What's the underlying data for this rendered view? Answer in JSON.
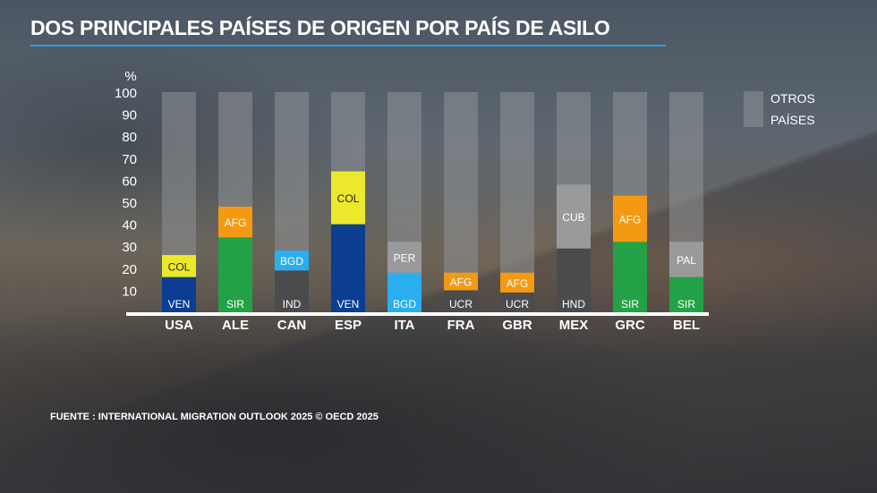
{
  "header": {
    "title": "DOS PRINCIPALES PAÍSES DE ORIGEN POR PAÍS DE ASILO"
  },
  "footer": {
    "source": "FUENTE : INTERNATIONAL MIGRATION OUTLOOK 2025 © OECD 2025"
  },
  "chart_data": {
    "type": "bar",
    "stacked": true,
    "ylabel": "%",
    "ylim": [
      0,
      100
    ],
    "yticks": [
      10,
      20,
      30,
      40,
      50,
      60,
      70,
      80,
      90,
      100
    ],
    "categories": [
      "USA",
      "ALE",
      "CAN",
      "ESP",
      "ITA",
      "FRA",
      "GBR",
      "MEX",
      "GRC",
      "BEL"
    ],
    "legend": {
      "lines": [
        "OTROS",
        "PAÍSES"
      ],
      "placement": "right",
      "color": "#8e9196"
    },
    "background_total": 100,
    "stacks": [
      {
        "category": "USA",
        "segments": [
          {
            "label": "VEN",
            "value": 16,
            "color": "#0b3d91"
          },
          {
            "label": "COL",
            "value": 10,
            "color": "#ece82c"
          }
        ]
      },
      {
        "category": "ALE",
        "segments": [
          {
            "label": "SIR",
            "value": 34,
            "color": "#23a146"
          },
          {
            "label": "AFG",
            "value": 14,
            "color": "#f39a12"
          }
        ]
      },
      {
        "category": "CAN",
        "segments": [
          {
            "label": "IND",
            "value": 19,
            "color": "#4b4b4e"
          },
          {
            "label": "BGD",
            "value": 9,
            "color": "#2aaef0"
          }
        ]
      },
      {
        "category": "ESP",
        "segments": [
          {
            "label": "VEN",
            "value": 40,
            "color": "#0b3d91"
          },
          {
            "label": "COL",
            "value": 24,
            "color": "#ece82c"
          }
        ]
      },
      {
        "category": "ITA",
        "segments": [
          {
            "label": "BGD",
            "value": 18,
            "color": "#2aaef0"
          },
          {
            "label": "PER",
            "value": 14,
            "color": "#9a9a9d"
          }
        ]
      },
      {
        "category": "FRA",
        "segments": [
          {
            "label": "UCR",
            "value": 10,
            "color": "#4b4b4e"
          },
          {
            "label": "AFG",
            "value": 8,
            "color": "#f39a12"
          }
        ]
      },
      {
        "category": "GBR",
        "segments": [
          {
            "label": "UCR",
            "value": 9,
            "color": "#4b4b4e"
          },
          {
            "label": "AFG",
            "value": 9,
            "color": "#f39a12"
          }
        ]
      },
      {
        "category": "MEX",
        "segments": [
          {
            "label": "HND",
            "value": 29,
            "color": "#4b4b4e"
          },
          {
            "label": "CUB",
            "value": 29,
            "color": "#9a9a9d"
          }
        ]
      },
      {
        "category": "GRC",
        "segments": [
          {
            "label": "SIR",
            "value": 32,
            "color": "#23a146"
          },
          {
            "label": "AFG",
            "value": 21,
            "color": "#f39a12"
          }
        ]
      },
      {
        "category": "BEL",
        "segments": [
          {
            "label": "SIR",
            "value": 16,
            "color": "#23a146"
          },
          {
            "label": "PAL",
            "value": 16,
            "color": "#9a9a9d"
          }
        ]
      }
    ],
    "grid": false
  }
}
